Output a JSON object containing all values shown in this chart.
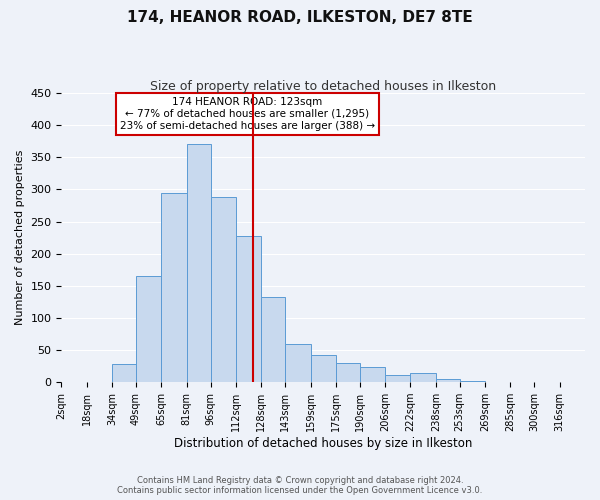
{
  "title": "174, HEANOR ROAD, ILKESTON, DE7 8TE",
  "subtitle": "Size of property relative to detached houses in Ilkeston",
  "xlabel": "Distribution of detached houses by size in Ilkeston",
  "ylabel": "Number of detached properties",
  "bar_labels": [
    "2sqm",
    "18sqm",
    "34sqm",
    "49sqm",
    "65sqm",
    "81sqm",
    "96sqm",
    "112sqm",
    "128sqm",
    "143sqm",
    "159sqm",
    "175sqm",
    "190sqm",
    "206sqm",
    "222sqm",
    "238sqm",
    "253sqm",
    "269sqm",
    "285sqm",
    "300sqm",
    "316sqm"
  ],
  "bar_values": [
    0,
    0,
    28,
    165,
    295,
    370,
    288,
    228,
    133,
    60,
    42,
    30,
    24,
    12,
    14,
    5,
    2,
    0,
    0,
    0,
    0
  ],
  "bar_edges": [
    2,
    18,
    34,
    49,
    65,
    81,
    96,
    112,
    128,
    143,
    159,
    175,
    190,
    206,
    222,
    238,
    253,
    269,
    285,
    300,
    316,
    332
  ],
  "bar_color": "#c8d9ee",
  "bar_edgecolor": "#5b9bd5",
  "property_line_x": 123,
  "property_line_color": "#cc0000",
  "ylim": [
    0,
    450
  ],
  "yticks": [
    0,
    50,
    100,
    150,
    200,
    250,
    300,
    350,
    400,
    450
  ],
  "annotation_title": "174 HEANOR ROAD: 123sqm",
  "annotation_line1": "← 77% of detached houses are smaller (1,295)",
  "annotation_line2": "23% of semi-detached houses are larger (388) →",
  "annotation_box_color": "#ffffff",
  "annotation_box_edgecolor": "#cc0000",
  "footer_line1": "Contains HM Land Registry data © Crown copyright and database right 2024.",
  "footer_line2": "Contains public sector information licensed under the Open Government Licence v3.0.",
  "background_color": "#eef2f9",
  "grid_color": "#ffffff",
  "title_fontsize": 11,
  "subtitle_fontsize": 9,
  "tick_fontsize": 7,
  "ylabel_fontsize": 8,
  "xlabel_fontsize": 8.5
}
